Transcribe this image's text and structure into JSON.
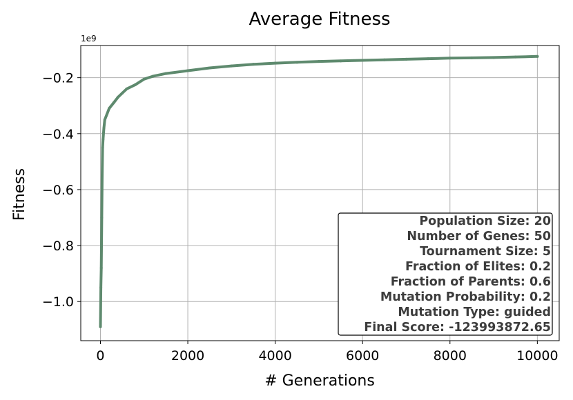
{
  "chart_data": {
    "type": "line",
    "title": "Average Fitness",
    "xlabel": "# Generations",
    "ylabel": "Fitness",
    "y_offset_label": "1e9",
    "xlim": [
      -450,
      10500
    ],
    "ylim": [
      -1.14,
      -0.085
    ],
    "x_ticks": [
      0,
      2000,
      4000,
      6000,
      8000,
      10000
    ],
    "x_tick_labels": [
      "0",
      "2000",
      "4000",
      "6000",
      "8000",
      "10000"
    ],
    "y_ticks": [
      -1.0,
      -0.8,
      -0.6,
      -0.4,
      -0.2
    ],
    "y_tick_labels": [
      "−1.0",
      "−0.8",
      "−0.6",
      "−0.4",
      "−0.2"
    ],
    "grid": true,
    "series": [
      {
        "color": "#5e8a6e",
        "x": [
          0,
          10,
          20,
          30,
          40,
          50,
          60,
          80,
          100,
          150,
          200,
          300,
          400,
          500,
          600,
          800,
          1000,
          1200,
          1500,
          2000,
          2500,
          3000,
          3500,
          4000,
          4500,
          5000,
          5500,
          6000,
          6500,
          7000,
          7500,
          8000,
          8500,
          9000,
          9500,
          10000
        ],
        "values": [
          -1.09,
          -0.95,
          -0.88,
          -0.7,
          -0.55,
          -0.45,
          -0.42,
          -0.38,
          -0.35,
          -0.33,
          -0.31,
          -0.29,
          -0.27,
          -0.255,
          -0.24,
          -0.225,
          -0.205,
          -0.195,
          -0.185,
          -0.175,
          -0.165,
          -0.158,
          -0.152,
          -0.148,
          -0.145,
          -0.142,
          -0.14,
          -0.138,
          -0.136,
          -0.134,
          -0.132,
          -0.13,
          -0.129,
          -0.128,
          -0.126,
          -0.124
        ]
      }
    ]
  },
  "info_box": {
    "lines": [
      "Population Size: 20",
      "Number of Genes: 50",
      "Tournament Size: 5",
      "Fraction of Elites: 0.2",
      "Fraction of Parents: 0.6",
      "Mutation Probability: 0.2",
      "Mutation Type: guided",
      "Final Score: -123993872.65"
    ]
  }
}
